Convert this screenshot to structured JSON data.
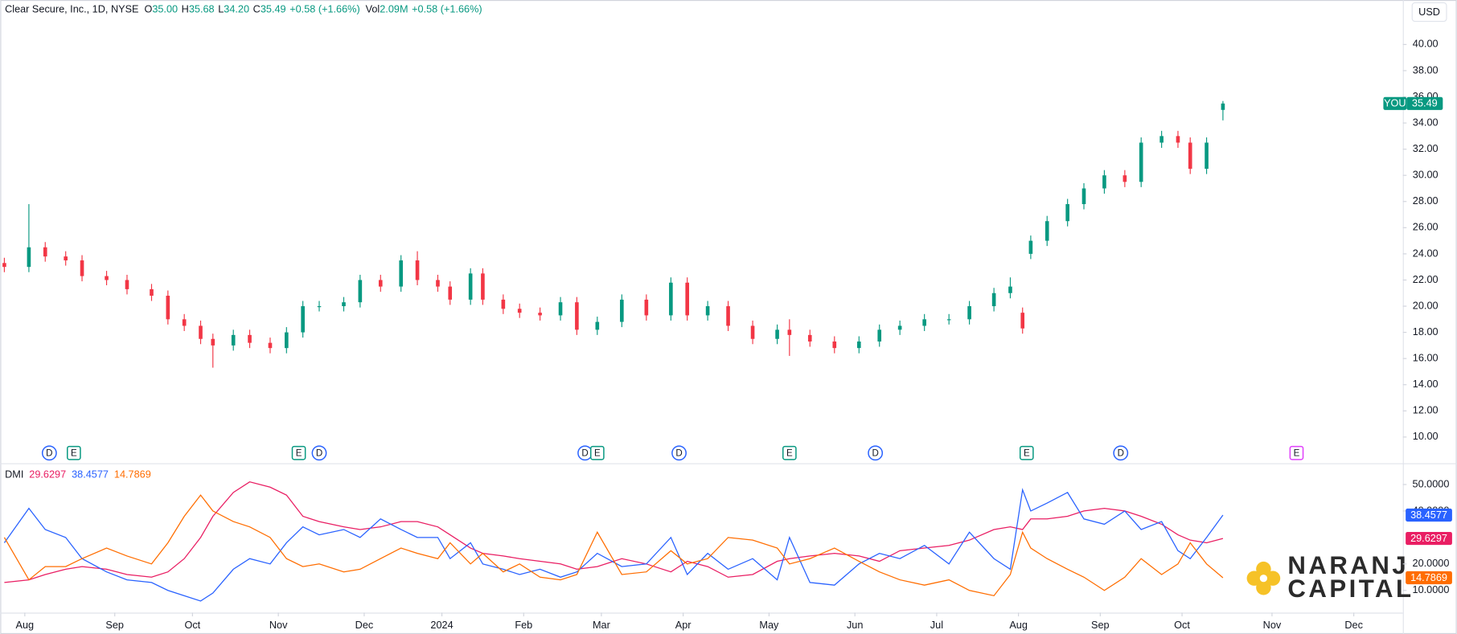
{
  "header": {
    "title": "Clear Secure, Inc., 1D, NYSE",
    "stats": [
      {
        "key": "O",
        "value": "35.00"
      },
      {
        "key": "H",
        "value": "35.68"
      },
      {
        "key": "L",
        "value": "34.20"
      },
      {
        "key": "C",
        "value": "35.49"
      }
    ],
    "change": "+0.58 (+1.66%)",
    "volume": {
      "key": "Vol",
      "value": "2.09M",
      "change": "+0.58 (+1.66%)"
    },
    "currency": "USD",
    "badge": "YOU"
  },
  "events": [
    {
      "x": 6,
      "label": "D"
    },
    {
      "x": 12,
      "label": "E"
    },
    {
      "x": 67,
      "label": "E"
    },
    {
      "x": 72,
      "label": "D"
    },
    {
      "x": 137,
      "label": "D"
    },
    {
      "x": 140,
      "label": "E"
    },
    {
      "x": 160,
      "label": "D"
    },
    {
      "x": 187,
      "label": "E"
    },
    {
      "x": 208,
      "label": "D"
    },
    {
      "x": 245,
      "label": "E"
    },
    {
      "x": 268,
      "label": "D"
    },
    {
      "x": 311,
      "label": "E"
    }
  ],
  "logo": {
    "line1": "NARANJ",
    "line2": "CAPITAL"
  },
  "chart_data": [
    {
      "type": "candlestick",
      "x": [
        -5,
        1,
        5,
        10,
        14,
        20,
        25,
        31,
        35,
        39,
        43,
        46,
        51,
        55,
        60,
        64,
        68,
        72,
        78,
        82,
        87,
        92,
        96,
        101,
        104,
        109,
        112,
        117,
        121,
        126,
        131,
        135,
        140,
        146,
        152,
        158,
        162,
        167,
        172,
        178,
        184,
        187,
        192,
        198,
        204,
        209,
        214,
        220,
        226,
        231,
        237,
        241,
        244,
        246,
        250,
        255,
        259,
        264,
        269,
        273,
        278,
        282,
        285,
        289,
        293
      ],
      "open": [
        23.3,
        23.0,
        24.5,
        23.8,
        23.5,
        22.3,
        22.0,
        21.3,
        20.8,
        19.0,
        18.5,
        17.5,
        17.0,
        17.8,
        17.2,
        16.8,
        18.0,
        20.0,
        20.0,
        20.3,
        22.0,
        21.5,
        23.5,
        22.0,
        21.5,
        20.5,
        22.5,
        20.5,
        19.8,
        19.5,
        19.3,
        20.3,
        18.2,
        18.8,
        20.5,
        19.3,
        21.8,
        19.3,
        20.0,
        18.5,
        17.5,
        18.2,
        17.8,
        17.3,
        16.8,
        17.3,
        18.2,
        18.5,
        19.0,
        19.0,
        20.0,
        21.0,
        19.5,
        24.0,
        25.0,
        26.5,
        27.8,
        29.0,
        30.0,
        29.5,
        32.5,
        33.0,
        32.5,
        30.5,
        35.0
      ],
      "high": [
        23.7,
        27.8,
        24.9,
        24.2,
        23.9,
        22.7,
        22.4,
        21.7,
        21.2,
        19.4,
        18.9,
        17.9,
        18.2,
        18.2,
        17.6,
        18.4,
        20.4,
        20.4,
        20.7,
        22.4,
        22.4,
        23.9,
        24.2,
        22.4,
        21.9,
        22.9,
        22.9,
        20.9,
        20.2,
        19.9,
        20.7,
        20.7,
        19.2,
        20.9,
        20.9,
        22.2,
        22.2,
        20.4,
        20.4,
        18.9,
        18.6,
        19.0,
        18.2,
        17.7,
        17.7,
        18.6,
        18.9,
        19.4,
        19.4,
        20.4,
        21.4,
        22.2,
        19.9,
        25.4,
        26.9,
        28.2,
        29.4,
        30.4,
        30.4,
        32.9,
        33.4,
        33.4,
        32.9,
        32.9,
        35.68
      ],
      "low": [
        22.6,
        22.6,
        23.4,
        23.1,
        21.9,
        21.6,
        20.9,
        20.4,
        18.6,
        18.1,
        17.1,
        15.3,
        16.6,
        16.8,
        16.4,
        16.4,
        17.6,
        19.6,
        19.6,
        19.9,
        21.1,
        21.1,
        21.6,
        21.1,
        20.1,
        20.1,
        20.1,
        19.4,
        19.1,
        18.9,
        18.9,
        17.8,
        17.8,
        18.4,
        18.9,
        18.9,
        18.9,
        18.9,
        18.1,
        17.1,
        17.1,
        16.2,
        16.9,
        16.4,
        16.4,
        16.9,
        17.8,
        18.1,
        18.6,
        18.6,
        19.6,
        20.6,
        17.9,
        23.6,
        24.6,
        26.1,
        27.4,
        28.6,
        29.1,
        29.1,
        32.1,
        32.1,
        30.1,
        30.1,
        34.2
      ],
      "close": [
        23.0,
        24.5,
        23.8,
        23.5,
        22.3,
        22.0,
        21.3,
        20.8,
        19.0,
        18.5,
        17.5,
        17.0,
        17.8,
        17.2,
        16.8,
        18.0,
        20.0,
        20.0,
        20.3,
        22.0,
        21.5,
        23.5,
        22.0,
        21.5,
        20.5,
        22.5,
        20.5,
        19.8,
        19.5,
        19.3,
        20.3,
        18.2,
        18.8,
        20.5,
        19.3,
        21.8,
        19.3,
        20.0,
        18.5,
        17.5,
        18.2,
        17.8,
        17.3,
        16.8,
        17.3,
        18.2,
        18.5,
        19.0,
        19.0,
        20.0,
        21.0,
        21.5,
        18.3,
        25.0,
        26.5,
        27.8,
        29.0,
        30.0,
        29.5,
        32.5,
        33.0,
        32.5,
        30.5,
        32.5,
        35.49
      ],
      "up_color": "#089981",
      "down_color": "#f23645",
      "xlim": [
        -6,
        337
      ],
      "ylim": [
        8,
        43.4
      ],
      "yticks": [
        {
          "value": 10,
          "label": "10.00"
        },
        {
          "value": 12,
          "label": "12.00"
        },
        {
          "value": 14,
          "label": "14.00"
        },
        {
          "value": 16,
          "label": "16.00"
        },
        {
          "value": 18,
          "label": "18.00"
        },
        {
          "value": 20,
          "label": "20.00"
        },
        {
          "value": 22,
          "label": "22.00"
        },
        {
          "value": 24,
          "label": "24.00"
        },
        {
          "value": 26,
          "label": "26.00"
        },
        {
          "value": 28,
          "label": "28.00"
        },
        {
          "value": 30,
          "label": "30.00"
        },
        {
          "value": 32,
          "label": "32.00"
        },
        {
          "value": 34,
          "label": "34.00"
        },
        {
          "value": 36,
          "label": "36.00"
        },
        {
          "value": 38,
          "label": "38.00"
        },
        {
          "value": 40,
          "label": "40.00"
        }
      ]
    },
    {
      "type": "line",
      "title": "DMI",
      "x": [
        -5,
        1,
        5,
        10,
        14,
        20,
        25,
        31,
        35,
        39,
        43,
        46,
        51,
        55,
        60,
        64,
        68,
        72,
        78,
        82,
        87,
        92,
        96,
        101,
        104,
        109,
        112,
        117,
        121,
        126,
        131,
        135,
        140,
        146,
        152,
        158,
        162,
        167,
        172,
        178,
        184,
        187,
        192,
        198,
        204,
        209,
        214,
        220,
        226,
        231,
        237,
        241,
        244,
        246,
        250,
        255,
        259,
        264,
        269,
        273,
        278,
        282,
        285,
        289,
        293
      ],
      "series": [
        {
          "color": "#e91e63",
          "values": [
            13,
            14,
            16,
            18,
            19,
            18,
            16,
            15,
            17,
            22,
            30,
            38,
            47,
            51,
            49,
            46,
            38,
            36,
            34,
            33,
            34,
            36,
            36,
            34,
            31,
            26,
            24,
            23,
            22,
            21,
            20,
            18,
            19,
            22,
            20,
            17,
            21,
            19,
            15,
            16,
            21,
            22,
            23,
            24,
            23,
            21,
            25,
            26,
            27,
            29,
            33,
            34,
            33,
            37,
            37,
            38,
            40,
            41,
            40,
            38,
            35,
            31,
            29,
            28,
            29.6297
          ]
        },
        {
          "color": "#2962ff",
          "values": [
            28,
            41,
            33,
            30,
            22,
            17,
            14,
            13,
            10,
            8,
            6,
            9,
            18,
            22,
            20,
            28,
            34,
            31,
            33,
            30,
            37,
            33,
            30,
            30,
            22,
            28,
            20,
            18,
            16,
            18,
            15,
            17,
            24,
            19,
            20,
            30,
            16,
            24,
            18,
            22,
            14,
            30,
            13,
            12,
            20,
            24,
            22,
            27,
            20,
            32,
            22,
            18,
            48,
            40,
            43,
            47,
            37,
            35,
            40,
            33,
            36,
            25,
            22,
            30,
            38.4577
          ]
        },
        {
          "color": "#ff6d00",
          "values": [
            30,
            14,
            19,
            19,
            22,
            26,
            23,
            20,
            28,
            38,
            46,
            40,
            36,
            34,
            30,
            22,
            19,
            20,
            17,
            18,
            22,
            26,
            24,
            22,
            28,
            20,
            24,
            17,
            20,
            15,
            14,
            16,
            32,
            16,
            17,
            25,
            20,
            22,
            30,
            29,
            26,
            20,
            22,
            26,
            21,
            17,
            14,
            12,
            14,
            10,
            8,
            16,
            32,
            26,
            22,
            18,
            15,
            10,
            15,
            22,
            16,
            20,
            28,
            20,
            14.7869
          ]
        }
      ],
      "xlim": [
        -6,
        337
      ],
      "ylim": [
        1.6,
        57.7
      ],
      "yticks": [
        {
          "value": 10,
          "label": "10.0000"
        },
        {
          "value": 20,
          "label": "20.0000"
        },
        {
          "value": 40,
          "label": "40.0000"
        },
        {
          "value": 50,
          "label": "50.0000"
        }
      ],
      "xticks": [
        {
          "value": 0,
          "label": "Aug"
        },
        {
          "value": 22,
          "label": "Sep"
        },
        {
          "value": 41,
          "label": "Oct"
        },
        {
          "value": 62,
          "label": "Nov"
        },
        {
          "value": 83,
          "label": "Dec"
        },
        {
          "value": 102,
          "label": "2024"
        },
        {
          "value": 122,
          "label": "Feb"
        },
        {
          "value": 141,
          "label": "Mar"
        },
        {
          "value": 161,
          "label": "Apr"
        },
        {
          "value": 182,
          "label": "May"
        },
        {
          "value": 203,
          "label": "Jun"
        },
        {
          "value": 223,
          "label": "Jul"
        },
        {
          "value": 243,
          "label": "Aug"
        },
        {
          "value": 263,
          "label": "Sep"
        },
        {
          "value": 283,
          "label": "Oct"
        },
        {
          "value": 305,
          "label": "Nov"
        },
        {
          "value": 325,
          "label": "Dec"
        }
      ]
    }
  ]
}
